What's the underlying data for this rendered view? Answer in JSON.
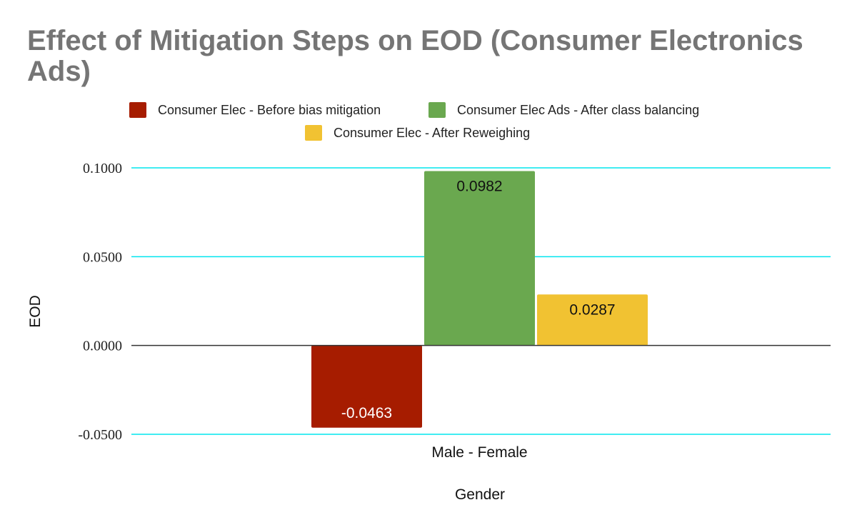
{
  "chart_data": {
    "type": "bar",
    "title": "Effect of Mitigation Steps on EOD (Consumer Electronics Ads)",
    "xlabel": "Gender",
    "ylabel": "EOD",
    "categories": [
      "Male - Female"
    ],
    "ylim": [
      -0.05,
      0.1
    ],
    "yticks": [
      "-0.0500",
      "0.0000",
      "0.0500",
      "0.1000"
    ],
    "grid": true,
    "legend_position": "top",
    "series": [
      {
        "name": "Consumer Elec - Before bias mitigation",
        "values": [
          -0.0463
        ],
        "labels": [
          "-0.0463"
        ],
        "color": "#a61c00",
        "label_color": "#ffffff"
      },
      {
        "name": "Consumer Elec Ads - After class balancing",
        "values": [
          0.0982
        ],
        "labels": [
          "0.0982"
        ],
        "color": "#6aa84f",
        "label_color": "#111111"
      },
      {
        "name": "Consumer Elec - After Reweighing",
        "values": [
          0.0287
        ],
        "labels": [
          "0.0287"
        ],
        "color": "#f1c232",
        "label_color": "#111111"
      }
    ],
    "gridline_color": "#00e5ee",
    "zero_line_color": "#333333"
  }
}
